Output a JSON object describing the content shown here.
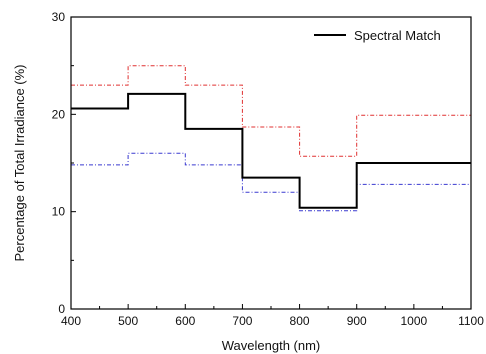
{
  "chart_data": {
    "type": "line",
    "xlabel": "Wavelength (nm)",
    "ylabel": "Percentage of Total Irradiance (%)",
    "xlim": [
      400,
      1100
    ],
    "ylim": [
      0,
      30
    ],
    "x_ticks": [
      "400",
      "500",
      "600",
      "700",
      "800",
      "900",
      "1000",
      "1100"
    ],
    "y_ticks": [
      "0",
      "10",
      "20",
      "30"
    ],
    "step": true,
    "x_edges": [
      400,
      500,
      600,
      700,
      800,
      900,
      1100
    ],
    "series": [
      {
        "name": "Spectral Match",
        "color": "#000000",
        "style": "solid",
        "values": [
          20.6,
          22.1,
          18.5,
          13.5,
          10.4,
          15.0
        ],
        "in_legend": true
      },
      {
        "color": "#e03030",
        "style": "dash-dot",
        "values": [
          23.0,
          25.0,
          23.0,
          18.7,
          15.7,
          19.9
        ],
        "in_legend": false
      },
      {
        "color": "#3a3ad0",
        "style": "dash-dot",
        "values": [
          14.8,
          16.0,
          14.8,
          12.0,
          10.1,
          12.8
        ],
        "in_legend": false
      }
    ],
    "legend_position": "top-right",
    "grid": false
  }
}
